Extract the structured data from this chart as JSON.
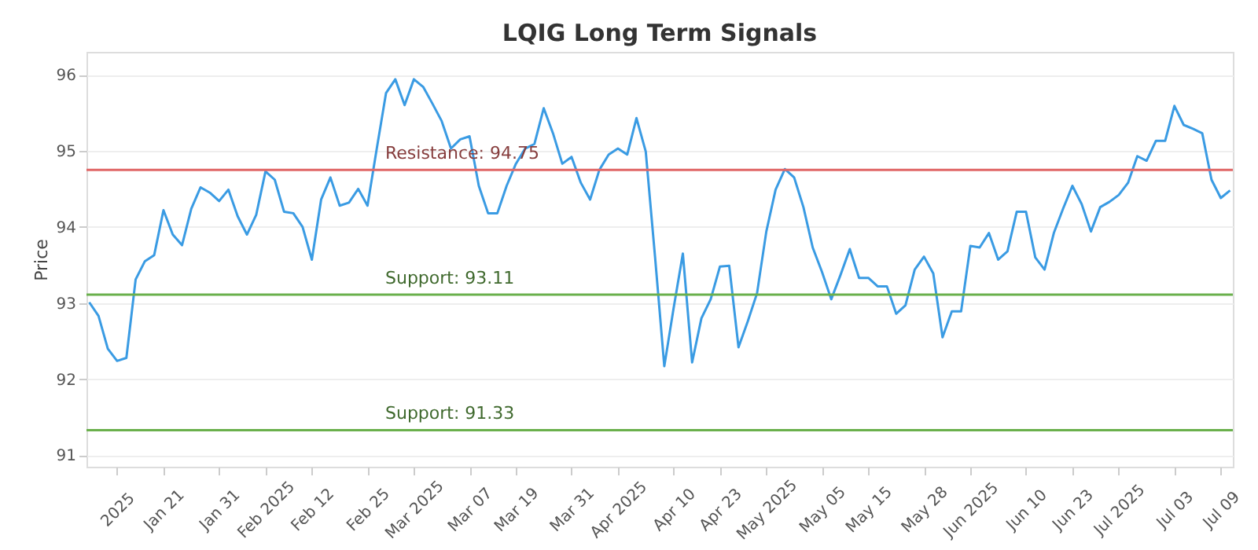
{
  "chart_data": {
    "type": "line",
    "title": "LQIG Long Term Signals",
    "ylabel": "Price",
    "categories": [
      null,
      null,
      null,
      "2025",
      null,
      null,
      null,
      null,
      "Jan 21",
      null,
      null,
      null,
      null,
      null,
      "Jan 31",
      null,
      null,
      null,
      null,
      "Feb 2025",
      null,
      null,
      null,
      null,
      "Feb 12",
      null,
      null,
      null,
      null,
      null,
      "Feb 25",
      null,
      null,
      null,
      null,
      "Mar 2025",
      null,
      null,
      null,
      null,
      null,
      "Mar 07",
      null,
      null,
      null,
      null,
      "Mar 19",
      null,
      null,
      null,
      null,
      null,
      "Mar 31",
      null,
      null,
      null,
      null,
      "Apr 2025",
      null,
      null,
      null,
      null,
      null,
      "Apr 10",
      null,
      null,
      null,
      null,
      "Apr 23",
      null,
      null,
      null,
      null,
      "May 2025",
      null,
      null,
      null,
      null,
      null,
      "May 05",
      null,
      null,
      null,
      null,
      "May 15",
      null,
      null,
      null,
      null,
      null,
      "May 28",
      null,
      null,
      null,
      null,
      "Jun 2025",
      null,
      null,
      null,
      null,
      null,
      "Jun 10",
      null,
      null,
      null,
      null,
      "Jun 23",
      null,
      null,
      null,
      null,
      "Jul 2025",
      null,
      null,
      null,
      null,
      null,
      "Jul 03",
      null,
      null,
      null,
      null,
      "Jul 09",
      null
    ],
    "series": [
      {
        "color": "#3a9be3",
        "values": [
          93.01,
          92.83,
          92.4,
          92.24,
          92.28,
          93.31,
          93.55,
          93.63,
          94.22,
          93.9,
          93.76,
          94.24,
          94.52,
          94.45,
          94.34,
          94.49,
          94.14,
          93.9,
          94.16,
          94.73,
          94.62,
          94.2,
          94.18,
          94.0,
          93.57,
          94.36,
          94.65,
          94.28,
          94.32,
          94.5,
          94.28,
          95.03,
          95.76,
          95.94,
          95.6,
          95.94,
          95.84,
          95.62,
          95.39,
          95.03,
          95.15,
          95.19,
          94.54,
          94.18,
          94.18,
          94.54,
          94.83,
          95.03,
          95.09,
          95.56,
          95.23,
          94.83,
          94.92,
          94.58,
          94.36,
          94.75,
          94.95,
          95.03,
          94.95,
          95.43,
          94.99,
          93.61,
          92.17,
          92.93,
          93.65,
          92.22,
          92.8,
          93.05,
          93.48,
          93.49,
          92.42,
          92.76,
          93.13,
          93.94,
          94.49,
          94.76,
          94.65,
          94.26,
          93.73,
          93.41,
          93.05,
          93.37,
          93.71,
          93.33,
          93.33,
          93.22,
          93.22,
          92.86,
          92.97,
          93.44,
          93.61,
          93.39,
          92.55,
          92.89,
          92.89,
          93.75,
          93.73,
          93.92,
          93.57,
          93.68,
          94.2,
          94.2,
          93.6,
          93.44,
          93.92,
          94.24,
          94.54,
          94.3,
          93.94,
          94.26,
          94.33,
          94.42,
          94.58,
          94.93,
          94.87,
          95.13,
          95.13,
          95.59,
          95.34,
          95.29,
          95.23,
          94.62,
          94.38,
          94.48
        ]
      }
    ],
    "ylim": [
      90.85,
      96.3
    ],
    "yticks": [
      91,
      92,
      93,
      94,
      95,
      96
    ],
    "grid": "y",
    "legend": false,
    "marker": "none",
    "line_style": "solid",
    "ref_lines": [
      {
        "axis": "y",
        "value": 94.75,
        "label": "Resistance: 94.75",
        "color": "#e06666"
      },
      {
        "axis": "y",
        "value": 93.11,
        "label": "Support: 93.11",
        "color": "#6ab04c"
      },
      {
        "axis": "y",
        "value": 91.33,
        "label": "Support: 91.33",
        "color": "#6ab04c"
      }
    ]
  }
}
